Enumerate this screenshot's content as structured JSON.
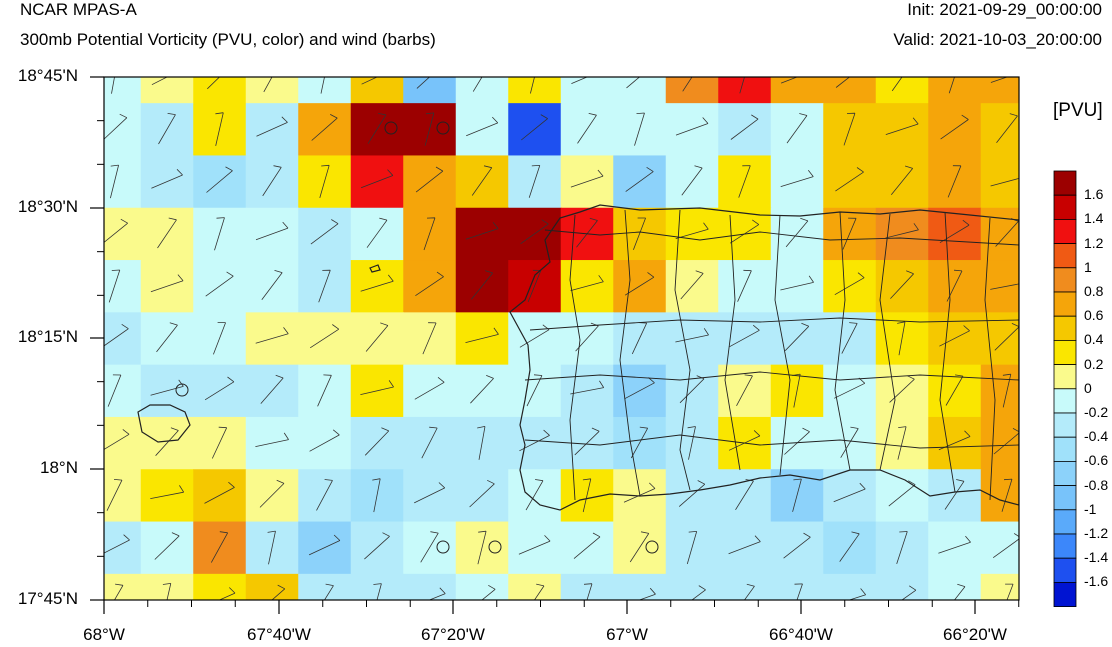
{
  "header": {
    "title": "NCAR MPAS-A",
    "subtitle": "300mb Potential Vorticity (PVU, color) and wind (barbs)",
    "init": "Init: 2021-09-29_00:00:00",
    "valid": "Valid: 2021-10-03_20:00:00"
  },
  "chart_data": {
    "type": "heatmap",
    "title": "300mb Potential Vorticity (PVU, color) and wind (barbs)",
    "x_tick_labels": [
      "68°W",
      "67°40'W",
      "67°20'W",
      "67°W",
      "66°40'W",
      "66°20'W"
    ],
    "y_tick_labels": [
      "18°45'N",
      "18°30'N",
      "18°15'N",
      "18°N",
      "17°45'N"
    ],
    "xlim_deg": [
      -68.0,
      -66.283
    ],
    "ylim_deg": [
      17.75,
      18.75
    ],
    "colorbar": {
      "title": "[PVU]",
      "labels": [
        "1.6",
        "1.4",
        "1.2",
        "1",
        "0.8",
        "0.6",
        "0.4",
        "0.2",
        "0",
        "-0.2",
        "-0.4",
        "-0.6",
        "-0.8",
        "-1",
        "-1.2",
        "-1.4",
        "-1.6"
      ],
      "colors": [
        "#9c0000",
        "#c80000",
        "#f01010",
        "#f05a14",
        "#f08c1e",
        "#f5a50a",
        "#f5c800",
        "#fae600",
        "#fafa8c",
        "#c8fafa",
        "#b4ebfa",
        "#a0e1fa",
        "#8cd2fa",
        "#78c3fa",
        "#5aaafa",
        "#3c87fa",
        "#1e50f0",
        "#0014d2"
      ]
    },
    "grid_values": [
      [
        -0.1,
        0.1,
        0.3,
        0.1,
        -0.1,
        0.5,
        -1.0,
        -0.1,
        0.3,
        -0.1,
        -0.1,
        0.9,
        1.3,
        0.7,
        0.7,
        0.3,
        0.7,
        0.7
      ],
      [
        -0.1,
        -0.3,
        0.3,
        -0.3,
        0.7,
        1.7,
        1.7,
        -0.1,
        -1.5,
        -0.1,
        -0.1,
        -0.1,
        -0.3,
        -0.1,
        0.5,
        0.5,
        0.7,
        0.5
      ],
      [
        -0.1,
        -0.3,
        -0.5,
        -0.3,
        0.3,
        1.3,
        0.7,
        0.5,
        -0.3,
        0.1,
        -0.7,
        -0.1,
        0.3,
        -0.1,
        0.5,
        0.5,
        0.7,
        0.5
      ],
      [
        0.1,
        0.1,
        -0.1,
        -0.1,
        -0.3,
        -0.1,
        0.7,
        1.7,
        1.7,
        1.3,
        0.5,
        0.3,
        0.3,
        -0.1,
        0.7,
        0.9,
        1.1,
        0.7
      ],
      [
        -0.1,
        0.1,
        -0.1,
        -0.1,
        -0.3,
        0.3,
        0.7,
        1.7,
        1.5,
        0.3,
        0.7,
        0.1,
        -0.1,
        -0.1,
        0.3,
        0.5,
        0.7,
        0.7
      ],
      [
        -0.3,
        -0.1,
        -0.1,
        0.1,
        0.1,
        0.1,
        0.1,
        0.3,
        -0.1,
        -0.1,
        -0.3,
        -0.3,
        -0.3,
        -0.3,
        -0.3,
        0.3,
        0.5,
        0.5
      ],
      [
        -0.1,
        -0.3,
        -0.3,
        -0.3,
        -0.1,
        0.3,
        -0.1,
        -0.1,
        -0.1,
        -0.3,
        -0.7,
        -0.3,
        0.1,
        0.3,
        -0.1,
        0.1,
        0.3,
        0.7
      ],
      [
        0.1,
        0.1,
        0.1,
        -0.1,
        -0.1,
        -0.3,
        -0.3,
        -0.3,
        -0.3,
        -0.3,
        -0.5,
        -0.3,
        0.3,
        -0.1,
        -0.1,
        0.1,
        0.5,
        0.7
      ],
      [
        0.1,
        0.3,
        0.5,
        0.1,
        -0.3,
        -0.5,
        -0.3,
        -0.3,
        -0.1,
        0.3,
        0.1,
        -0.3,
        -0.3,
        -0.7,
        -0.3,
        -0.1,
        -0.3,
        0.7
      ],
      [
        -0.3,
        -0.1,
        0.9,
        -0.3,
        -0.7,
        -0.3,
        -0.1,
        0.1,
        -0.1,
        -0.1,
        0.1,
        -0.3,
        -0.3,
        -0.3,
        -0.5,
        -0.3,
        -0.1,
        -0.1
      ],
      [
        0.1,
        0.1,
        0.3,
        0.5,
        -0.3,
        -0.3,
        -0.3,
        -0.1,
        0.1,
        -0.3,
        -0.3,
        -0.3,
        -0.3,
        -0.3,
        -0.3,
        -0.3,
        -0.1,
        0.1
      ]
    ]
  }
}
